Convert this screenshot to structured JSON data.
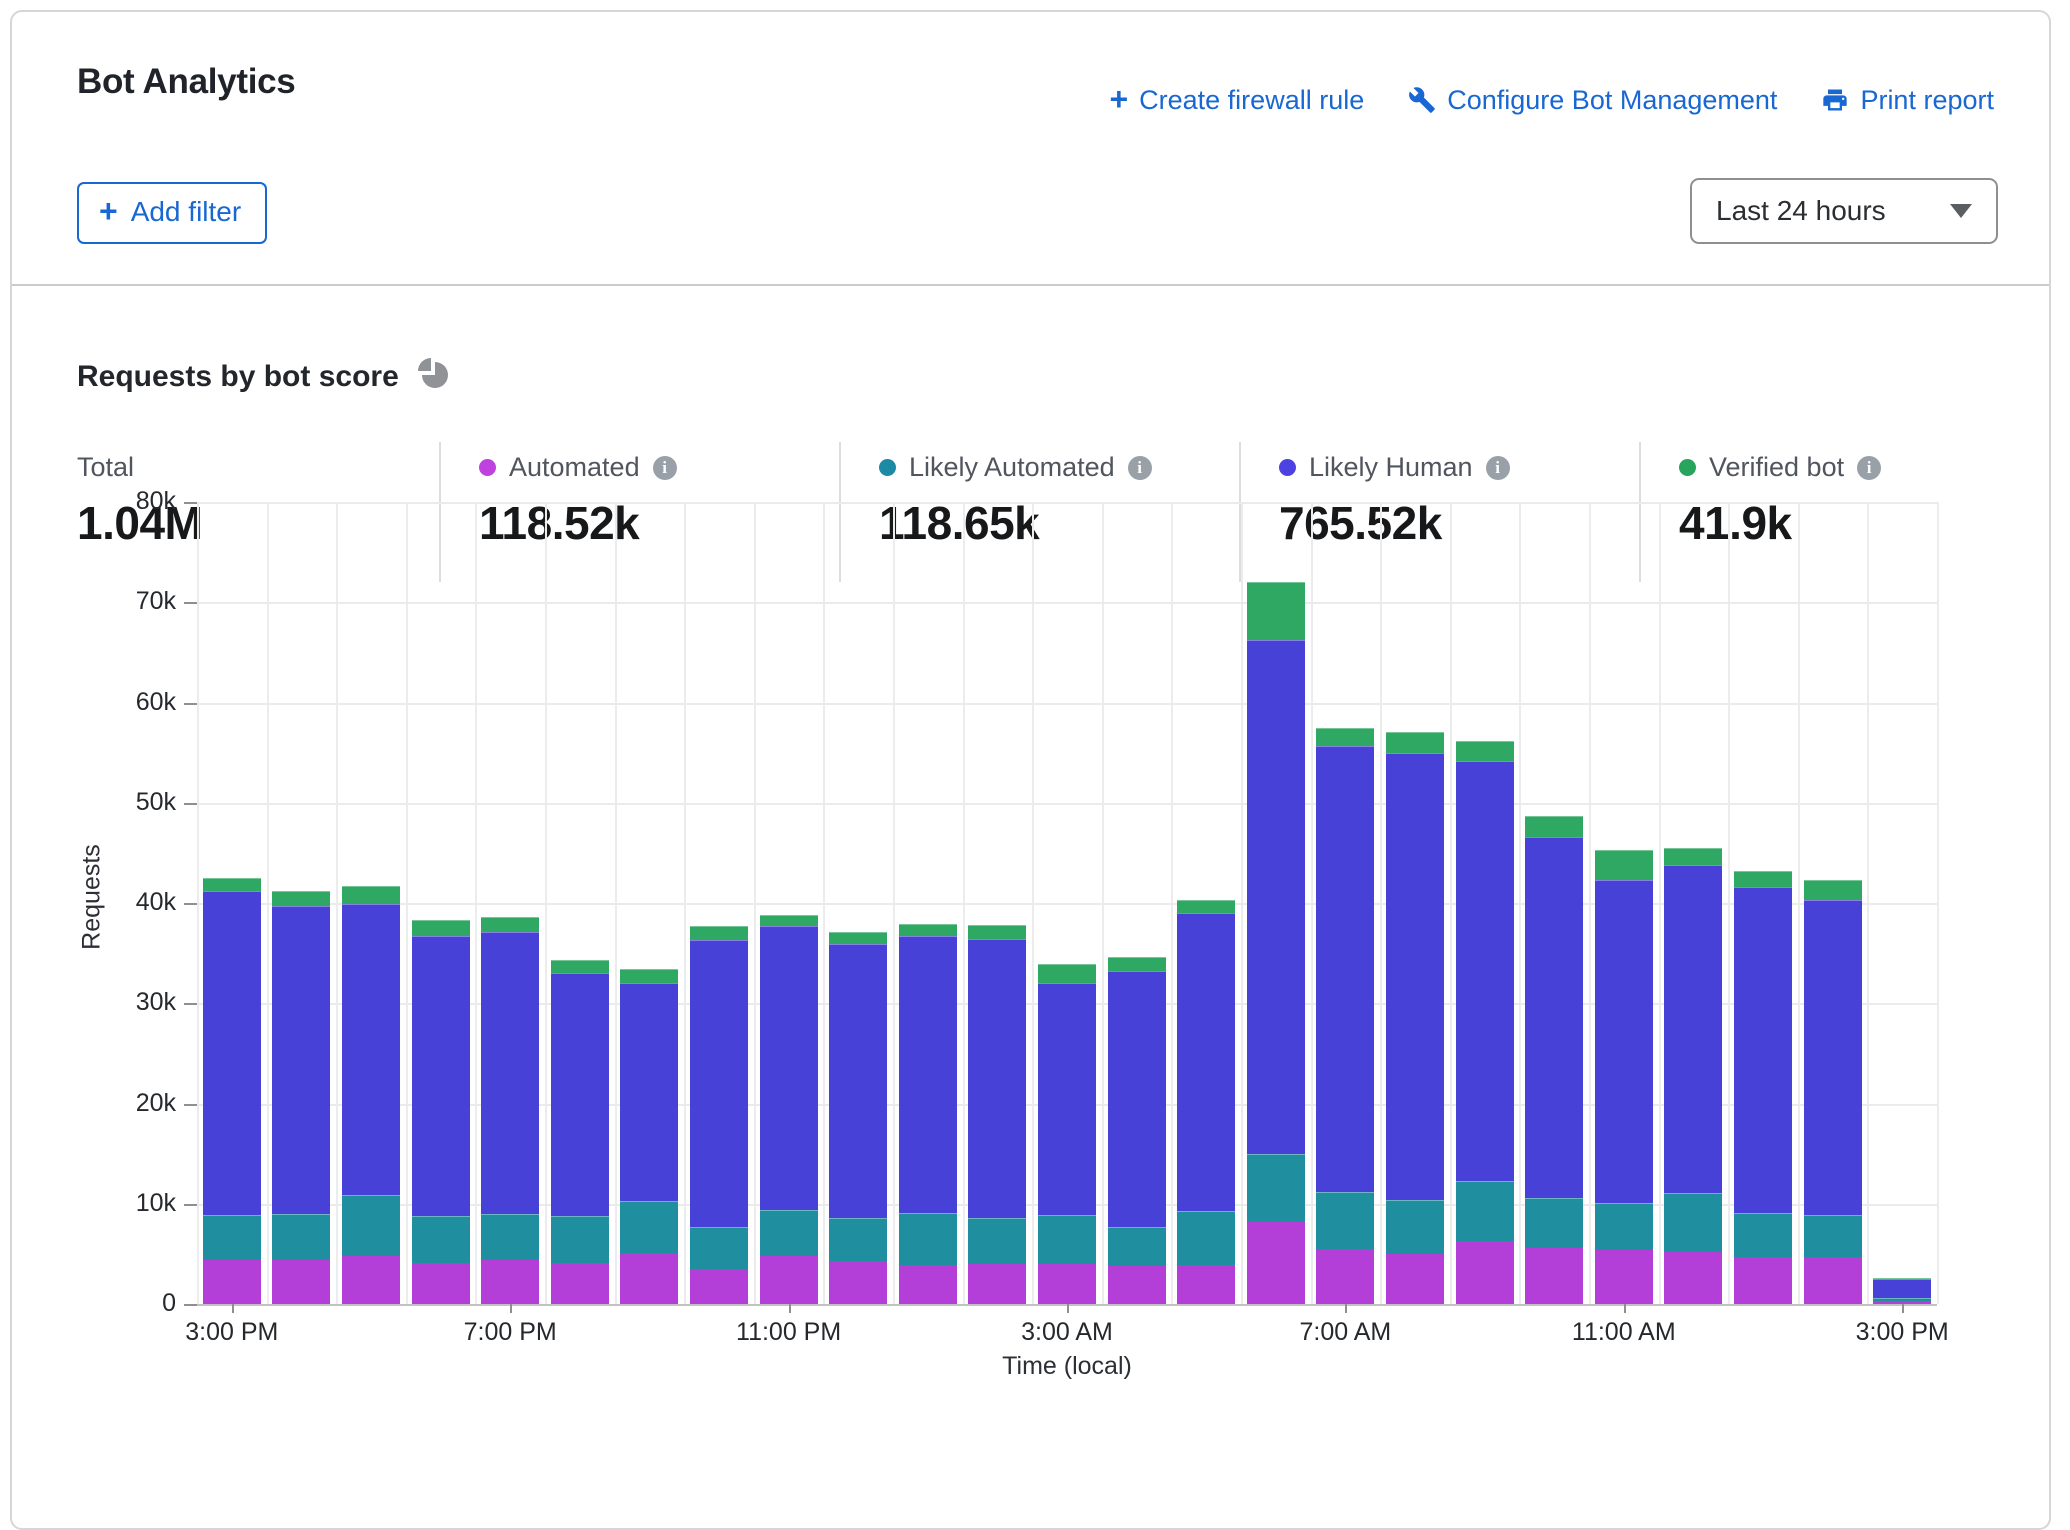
{
  "header": {
    "title": "Bot Analytics",
    "actions": [
      {
        "icon": "plus-icon",
        "label": "Create firewall rule"
      },
      {
        "icon": "wrench-icon",
        "label": "Configure Bot Management"
      },
      {
        "icon": "printer-icon",
        "label": "Print report"
      }
    ],
    "add_filter_label": "Add filter",
    "time_range_value": "Last 24 hours",
    "accent_blue": "#1967d2"
  },
  "section": {
    "title": "Requests by bot score",
    "icon": "pie-chart-icon"
  },
  "stats": [
    {
      "label": "Total",
      "value": "1.04M",
      "dot_color": ""
    },
    {
      "label": "Automated",
      "value": "118.52k",
      "dot_color": "#bf42e0"
    },
    {
      "label": "Likely Automated",
      "value": "118.65k",
      "dot_color": "#1b8aa5"
    },
    {
      "label": "Likely Human",
      "value": "765.52k",
      "dot_color": "#4c42e2"
    },
    {
      "label": "Verified bot",
      "value": "41.9k",
      "dot_color": "#28a55c"
    }
  ],
  "chart_data": {
    "type": "bar",
    "stacked": true,
    "title": "Requests by bot score",
    "xlabel": "Time (local)",
    "ylabel": "Requests",
    "ylim": [
      0,
      80000
    ],
    "y_tick_step": 10000,
    "y_tick_labels": [
      "0",
      "10k",
      "20k",
      "30k",
      "40k",
      "50k",
      "60k",
      "70k",
      "80k"
    ],
    "x_tick_labels": [
      "3:00 PM",
      "7:00 PM",
      "11:00 PM",
      "3:00 AM",
      "7:00 AM",
      "11:00 AM",
      "3:00 PM"
    ],
    "x_tick_bar_indices": [
      0,
      4,
      8,
      12,
      16,
      20,
      24
    ],
    "grid": true,
    "legend_position": "top-stats-row",
    "categories_note": "25 hourly buckets, 3:00 PM through 3:00 PM next day (last bucket partial)",
    "series": [
      {
        "name": "Automated",
        "color": "#b43fd8",
        "values": [
          4400,
          4400,
          4800,
          4100,
          4400,
          4100,
          5100,
          3500,
          4800,
          4300,
          3900,
          4000,
          4000,
          3800,
          3900,
          8200,
          5500,
          5000,
          6250,
          5600,
          5400,
          5200,
          4700,
          4700,
          300
        ]
      },
      {
        "name": "Likely Automated",
        "color": "#1f8e9e",
        "values": [
          4500,
          4600,
          6100,
          4650,
          4600,
          4700,
          5200,
          4200,
          4600,
          4300,
          5200,
          4600,
          4900,
          3900,
          5400,
          6800,
          5700,
          5400,
          6050,
          5000,
          4700,
          5900,
          4400,
          4200,
          300
        ]
      },
      {
        "name": "Likely Human",
        "color": "#4741d8",
        "values": [
          32300,
          30700,
          29000,
          27950,
          28100,
          24200,
          21700,
          28600,
          28300,
          27300,
          27600,
          27800,
          23150,
          25550,
          29700,
          51200,
          44450,
          44600,
          41900,
          36000,
          32200,
          32700,
          32550,
          31400,
          1900
        ]
      },
      {
        "name": "Verified bot",
        "color": "#2ea862",
        "values": [
          1300,
          1500,
          1800,
          1600,
          1500,
          1300,
          1400,
          1400,
          1100,
          1200,
          1200,
          1450,
          1850,
          1350,
          1300,
          5800,
          1850,
          2100,
          2000,
          2100,
          3000,
          1700,
          1550,
          2000,
          100
        ]
      }
    ]
  }
}
